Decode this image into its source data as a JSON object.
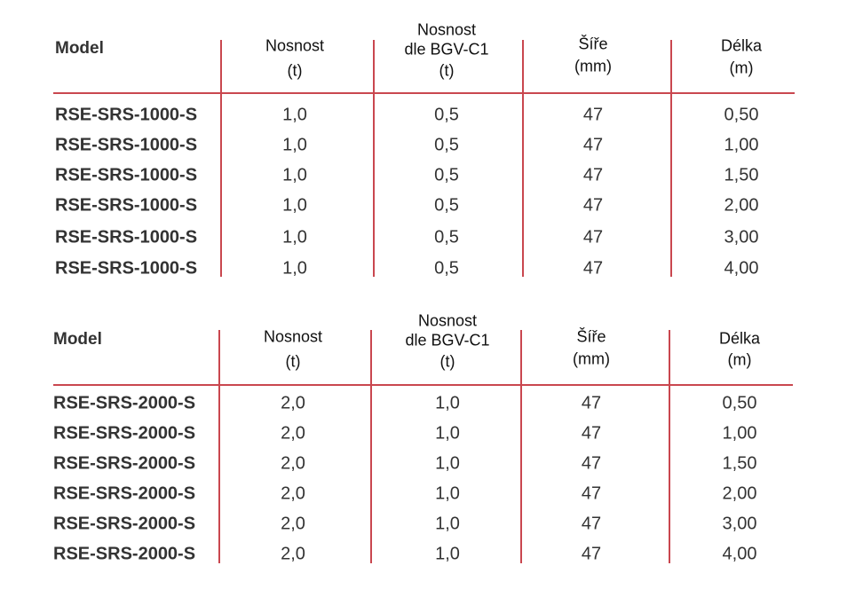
{
  "tables": [
    {
      "headers": [
        [
          "Model"
        ],
        [
          "Nosnost",
          "(t)"
        ],
        [
          "Nosnost",
          "dle BGV-C1",
          "(t)"
        ],
        [
          "Šíře",
          "(mm)"
        ],
        [
          "Délka",
          "(m)"
        ]
      ],
      "rows": [
        [
          "RSE-SRS-1000-S",
          "1,0",
          "0,5",
          "47",
          "0,50"
        ],
        [
          "RSE-SRS-1000-S",
          "1,0",
          "0,5",
          "47",
          "1,00"
        ],
        [
          "RSE-SRS-1000-S",
          "1,0",
          "0,5",
          "47",
          "1,50"
        ],
        [
          "RSE-SRS-1000-S",
          "1,0",
          "0,5",
          "47",
          "2,00"
        ],
        [
          "RSE-SRS-1000-S",
          "1,0",
          "0,5",
          "47",
          "3,00"
        ],
        [
          "RSE-SRS-1000-S",
          "1,0",
          "0,5",
          "47",
          "4,00"
        ]
      ]
    },
    {
      "headers": [
        [
          "Model"
        ],
        [
          "Nosnost",
          "(t)"
        ],
        [
          "Nosnost",
          "dle BGV-C1",
          "(t)"
        ],
        [
          "Šíře",
          "(mm)"
        ],
        [
          "Délka",
          "(m)"
        ]
      ],
      "rows": [
        [
          "RSE-SRS-2000-S",
          "2,0",
          "1,0",
          "47",
          "0,50"
        ],
        [
          "RSE-SRS-2000-S",
          "2,0",
          "1,0",
          "47",
          "1,00"
        ],
        [
          "RSE-SRS-2000-S",
          "2,0",
          "1,0",
          "47",
          "1,50"
        ],
        [
          "RSE-SRS-2000-S",
          "2,0",
          "1,0",
          "47",
          "2,00"
        ],
        [
          "RSE-SRS-2000-S",
          "2,0",
          "1,0",
          "47",
          "3,00"
        ],
        [
          "RSE-SRS-2000-S",
          "2,0",
          "1,0",
          "47",
          "4,00"
        ]
      ]
    }
  ]
}
